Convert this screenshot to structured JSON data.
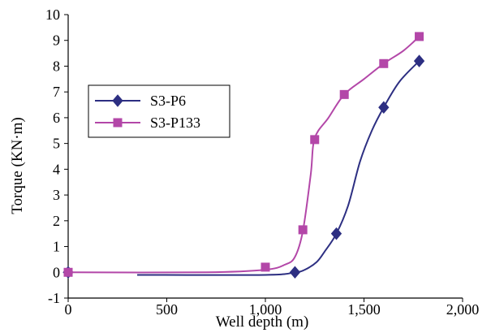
{
  "chart_data": {
    "type": "line",
    "xlabel": "Well depth (m)",
    "ylabel": "Torque (KN·m)",
    "xlim": [
      0,
      2000
    ],
    "ylim": [
      -1,
      10
    ],
    "x_ticks": [
      "0",
      "500",
      "1,000",
      "1,500",
      "2,000"
    ],
    "y_ticks": [
      "-1",
      "0",
      "1",
      "2",
      "3",
      "4",
      "5",
      "6",
      "7",
      "8",
      "9",
      "10"
    ],
    "grid": false,
    "legend_position": "left",
    "series": [
      {
        "name": "S3-P6",
        "color": "#2d2f82",
        "marker": "diamond",
        "curve": [
          [
            350,
            -0.1
          ],
          [
            1000,
            -0.1
          ],
          [
            1150,
            0
          ],
          [
            1200,
            0.1
          ],
          [
            1260,
            0.4
          ],
          [
            1300,
            0.8
          ],
          [
            1360,
            1.5
          ],
          [
            1420,
            2.6
          ],
          [
            1480,
            4.3
          ],
          [
            1540,
            5.5
          ],
          [
            1600,
            6.4
          ],
          [
            1680,
            7.4
          ],
          [
            1780,
            8.2
          ]
        ],
        "points": [
          [
            0,
            0
          ],
          [
            1150,
            0
          ],
          [
            1360,
            1.5
          ],
          [
            1600,
            6.4
          ],
          [
            1780,
            8.2
          ]
        ]
      },
      {
        "name": "S3-P133",
        "color": "#b347a8",
        "marker": "square",
        "curve": [
          [
            0,
            0
          ],
          [
            700,
            0
          ],
          [
            1000,
            0.1
          ],
          [
            1100,
            0.3
          ],
          [
            1150,
            0.6
          ],
          [
            1190,
            1.6
          ],
          [
            1230,
            3.8
          ],
          [
            1250,
            5.2
          ],
          [
            1320,
            6.0
          ],
          [
            1400,
            6.9
          ],
          [
            1500,
            7.5
          ],
          [
            1600,
            8.1
          ],
          [
            1700,
            8.6
          ],
          [
            1780,
            9.15
          ]
        ],
        "points": [
          [
            0,
            0
          ],
          [
            1000,
            0.2
          ],
          [
            1190,
            1.65
          ],
          [
            1250,
            5.15
          ],
          [
            1400,
            6.9
          ],
          [
            1600,
            8.1
          ],
          [
            1780,
            9.15
          ]
        ]
      }
    ]
  }
}
